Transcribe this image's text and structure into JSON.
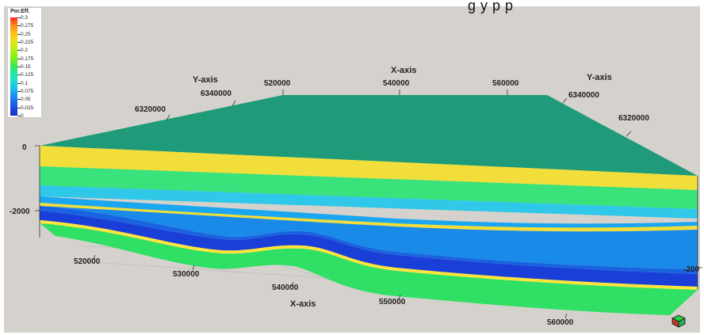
{
  "top_text_fragment": "g              y   p   p",
  "legend": {
    "title": "Por.Eff.",
    "labels": [
      "0.3",
      "0.275",
      "0.25",
      "0.225",
      "0.2",
      "0.175",
      "0.15",
      "0.125",
      "0.1",
      "0.075",
      "0.05",
      "0.025",
      "0"
    ],
    "colors": [
      "#ff2a1a",
      "#ff8a1a",
      "#ffc21a",
      "#e6e61a",
      "#b2ee1a",
      "#7cf01a",
      "#33e85a",
      "#22e6a8",
      "#1fd6e0",
      "#1ab0f0",
      "#1a7af0",
      "#1a4fe0",
      "#1a2ad0"
    ]
  },
  "axes": {
    "y_axis_left_title": "Y-axis",
    "y_axis_right_title": "Y-axis",
    "x_axis_top_title": "X-axis",
    "x_axis_bottom_title": "X-axis",
    "y_left_ticks": [
      "6340000",
      "6320000"
    ],
    "y_right_ticks": [
      "6340000",
      "6320000"
    ],
    "x_top_ticks": [
      "520000",
      "540000",
      "560000"
    ],
    "x_bottom_ticks": [
      "520000",
      "530000",
      "540000",
      "550000",
      "560000"
    ],
    "z_left_ticks": [
      "0",
      "-2000"
    ],
    "z_right_ticks": [
      "-200"
    ]
  },
  "colors": {
    "top_surface": "#1f9b79",
    "yellow_layer": "#f2de3a",
    "green_layer": "#39e27a",
    "cyan_layer": "#2fc8e8",
    "light_blue_layer": "#1aa6f0",
    "blue_layer": "#1a63e0",
    "deep_blue_layer": "#1a3fd8",
    "bottom_green": "#2fe065",
    "background": "#d5d2cd"
  }
}
